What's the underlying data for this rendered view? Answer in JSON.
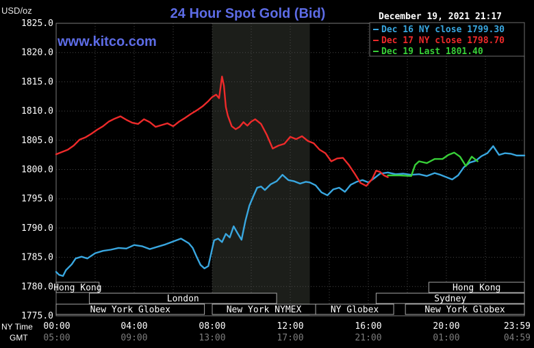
{
  "chart_data": {
    "type": "line",
    "title": "24 Hour Spot Gold (Bid)",
    "ylabel": "USD/oz",
    "watermark": "www.kitco.com",
    "timestamp": "December 19, 2021 21:17",
    "ylim": [
      1775,
      1825
    ],
    "xlim_hours": [
      0,
      24
    ],
    "y_ticks": [
      "1825.0",
      "1820.0",
      "1815.0",
      "1810.0",
      "1805.0",
      "1800.0",
      "1795.0",
      "1790.0",
      "1785.0",
      "1780.0",
      "1775.0"
    ],
    "x_row_ny": {
      "label": "NY Time",
      "ticks": [
        "00:00",
        "04:00",
        "08:00",
        "12:00",
        "16:00",
        "20:00",
        "23:59"
      ]
    },
    "x_row_gmt": {
      "label": "GMT",
      "ticks": [
        "05:00",
        "09:00",
        "13:00",
        "17:00",
        "21:00",
        "01:00",
        "04:59"
      ]
    },
    "highlight_hours": [
      8,
      13
    ],
    "grid": true,
    "legend_placement": "top-right",
    "markets": [
      {
        "name": "Hong Kong",
        "row": 0,
        "start": 0,
        "end": 2.2
      },
      {
        "name": "London",
        "row": 1,
        "start": 1.7,
        "end": 11.3
      },
      {
        "name": "New York Globex",
        "row": 2,
        "start": 0,
        "end": 7.6
      },
      {
        "name": "New York NYMEX",
        "row": 2,
        "start": 8,
        "end": 13.3
      },
      {
        "name": "NY Globex",
        "row": 2,
        "start": 13.3,
        "end": 17.3
      },
      {
        "name": "Hong Kong",
        "row": 0,
        "start": 19.1,
        "end": 24
      },
      {
        "name": "Sydney",
        "row": 1,
        "start": 16.4,
        "end": 24
      },
      {
        "name": "New York Globex",
        "row": 2,
        "start": 17.9,
        "end": 24
      }
    ],
    "series": [
      {
        "name": "Dec 16 NY close 1799.30",
        "color": "#39a7e0",
        "x": [
          0,
          0.15,
          0.35,
          0.5,
          0.8,
          1.0,
          1.3,
          1.6,
          2.0,
          2.4,
          2.8,
          3.2,
          3.6,
          4.0,
          4.4,
          4.8,
          5.2,
          5.6,
          6.0,
          6.4,
          6.8,
          7.0,
          7.2,
          7.4,
          7.6,
          7.8,
          8.0,
          8.1,
          8.3,
          8.5,
          8.7,
          8.9,
          9.1,
          9.3,
          9.5,
          9.7,
          9.9,
          10.1,
          10.3,
          10.5,
          10.7,
          11.0,
          11.3,
          11.6,
          11.9,
          12.2,
          12.5,
          12.8,
          13.0,
          13.3,
          13.6,
          13.9,
          14.2,
          14.5,
          14.8,
          15.1,
          15.4,
          15.7,
          16.0,
          16.3,
          16.6,
          17.0,
          17.4,
          17.8,
          18.2,
          18.6,
          19.0,
          19.4,
          19.7,
          20.0,
          20.3,
          20.6,
          20.9,
          21.2,
          21.5,
          21.8,
          22.1,
          22.4,
          22.7,
          23.0,
          23.3,
          23.6,
          24.0
        ],
        "y": [
          1782.5,
          1782.0,
          1781.8,
          1782.8,
          1783.8,
          1784.8,
          1785.1,
          1784.8,
          1785.7,
          1786.1,
          1786.3,
          1786.6,
          1786.5,
          1787.1,
          1786.9,
          1786.4,
          1786.8,
          1787.2,
          1787.7,
          1788.2,
          1787.4,
          1786.6,
          1785.1,
          1783.7,
          1783.1,
          1783.5,
          1786.5,
          1787.9,
          1788.2,
          1787.6,
          1789.0,
          1788.4,
          1790.3,
          1789.1,
          1788.0,
          1791.2,
          1793.8,
          1795.4,
          1796.9,
          1797.1,
          1796.5,
          1797.5,
          1798.0,
          1799.1,
          1798.2,
          1798.0,
          1797.6,
          1797.9,
          1797.8,
          1797.3,
          1796.1,
          1795.6,
          1796.6,
          1796.9,
          1796.2,
          1797.4,
          1797.9,
          1798.2,
          1797.8,
          1798.5,
          1799.3,
          1799.5,
          1799.2,
          1799.3,
          1799.1,
          1799.2,
          1798.9,
          1799.4,
          1799.1,
          1798.7,
          1798.3,
          1799.0,
          1800.4,
          1801.2,
          1801.5,
          1802.3,
          1802.8,
          1804.0,
          1802.5,
          1802.8,
          1802.7,
          1802.4,
          1802.4
        ]
      },
      {
        "name": "Dec 17 NY close 1798.70",
        "color": "#ee2a2a",
        "x": [
          0,
          0.3,
          0.6,
          0.9,
          1.2,
          1.5,
          1.8,
          2.1,
          2.4,
          2.7,
          3.0,
          3.3,
          3.6,
          3.9,
          4.2,
          4.5,
          4.8,
          5.1,
          5.4,
          5.7,
          6.0,
          6.3,
          6.6,
          6.9,
          7.2,
          7.5,
          7.8,
          8.0,
          8.2,
          8.35,
          8.5,
          8.6,
          8.7,
          8.8,
          9.0,
          9.2,
          9.4,
          9.6,
          9.8,
          10.0,
          10.2,
          10.5,
          10.8,
          11.1,
          11.4,
          11.7,
          12.0,
          12.3,
          12.6,
          12.9,
          13.2,
          13.5,
          13.8,
          14.1,
          14.4,
          14.7,
          15.0,
          15.3,
          15.6,
          15.9,
          16.2,
          16.4,
          16.6,
          16.8,
          17.0
        ],
        "y": [
          1802.6,
          1803.0,
          1803.4,
          1804.1,
          1805.1,
          1805.5,
          1806.1,
          1806.8,
          1807.4,
          1808.2,
          1808.7,
          1809.1,
          1808.5,
          1808.0,
          1807.8,
          1808.6,
          1808.1,
          1807.3,
          1807.6,
          1807.9,
          1807.4,
          1808.2,
          1808.8,
          1809.5,
          1810.1,
          1810.8,
          1811.7,
          1812.4,
          1812.8,
          1812.2,
          1815.9,
          1814.3,
          1810.7,
          1809.2,
          1807.4,
          1806.9,
          1807.3,
          1808.1,
          1807.5,
          1808.2,
          1808.6,
          1807.8,
          1805.9,
          1803.6,
          1804.1,
          1804.4,
          1805.6,
          1805.2,
          1805.7,
          1804.9,
          1804.5,
          1803.4,
          1802.8,
          1801.4,
          1801.9,
          1802.0,
          1800.8,
          1799.3,
          1797.7,
          1797.2,
          1798.4,
          1799.8,
          1799.6,
          1799.0,
          1798.7
        ]
      },
      {
        "name": "Dec 19 Last 1801.40",
        "color": "#38d038",
        "x": [
          17.0,
          17.6,
          18.2,
          18.4,
          18.6,
          19.0,
          19.4,
          19.8,
          20.1,
          20.4,
          20.7,
          21.0,
          21.3,
          21.6
        ],
        "y": [
          1799.0,
          1799.0,
          1798.9,
          1800.8,
          1801.4,
          1801.1,
          1801.8,
          1801.8,
          1802.5,
          1802.9,
          1802.2,
          1800.6,
          1802.2,
          1801.4
        ]
      }
    ]
  }
}
